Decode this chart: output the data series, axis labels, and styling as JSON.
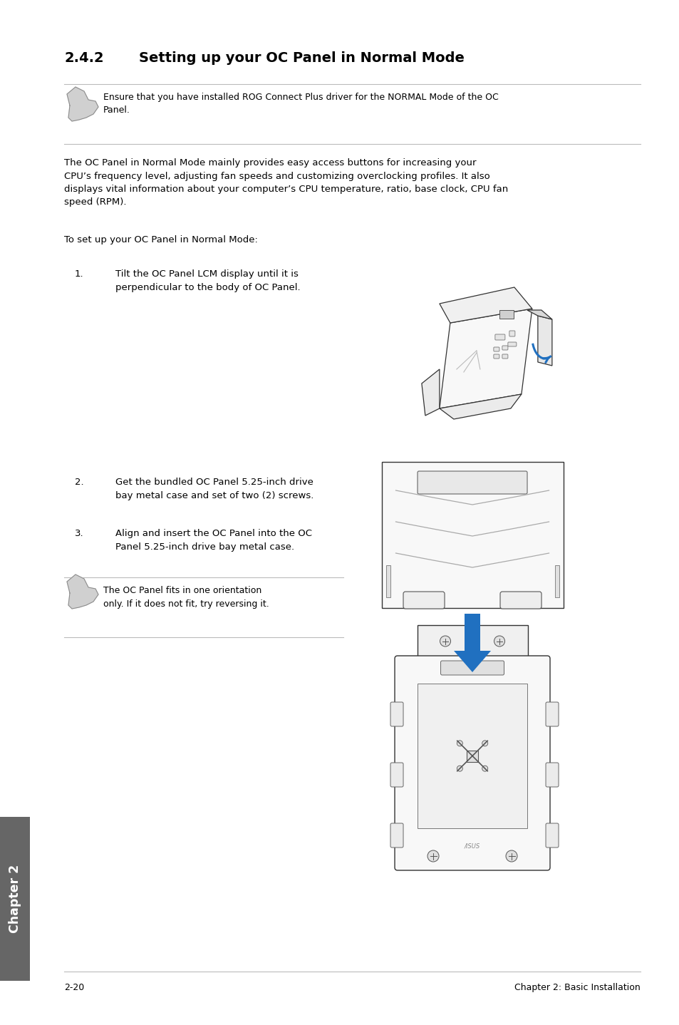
{
  "bg_color": "#ffffff",
  "title_num": "2.4.2",
  "title_text": "Setting up your OC Panel in Normal Mode",
  "note_text": "Ensure that you have installed ROG Connect Plus driver for the NORMAL Mode of the OC\nPanel.",
  "body_text": "The OC Panel in Normal Mode mainly provides easy access buttons for increasing your\nCPU’s frequency level, adjusting fan speeds and customizing overclocking profiles. It also\ndisplays vital information about your computer’s CPU temperature, ratio, base clock, CPU fan\nspeed (RPM).",
  "setup_text": "To set up your OC Panel in Normal Mode:",
  "step1_num": "1.",
  "step1_text": "Tilt the OC Panel LCM display until it is\nperpendicular to the body of OC Panel.",
  "step2_num": "2.",
  "step2_text": "Get the bundled OC Panel 5.25-inch drive\nbay metal case and set of two (2) screws.",
  "step3_num": "3.",
  "step3_text": "Align and insert the OC Panel into the OC\nPanel 5.25-inch drive bay metal case.",
  "note2_text": "The OC Panel fits in one orientation\nonly. If it does not fit, try reversing it.",
  "footer_left": "2-20",
  "footer_right": "Chapter 2: Basic Installation",
  "sidebar_text": "Chapter 2",
  "page_width": 9.54,
  "page_height": 14.38,
  "ml": 0.9,
  "mr": 0.55,
  "title_color": "#000000",
  "text_color": "#000000",
  "draw_color": "#333333",
  "sidebar_bg": "#666666",
  "sidebar_text_color": "#ffffff",
  "line_color": "#bbbbbb",
  "arrow_color": "#2070c0"
}
